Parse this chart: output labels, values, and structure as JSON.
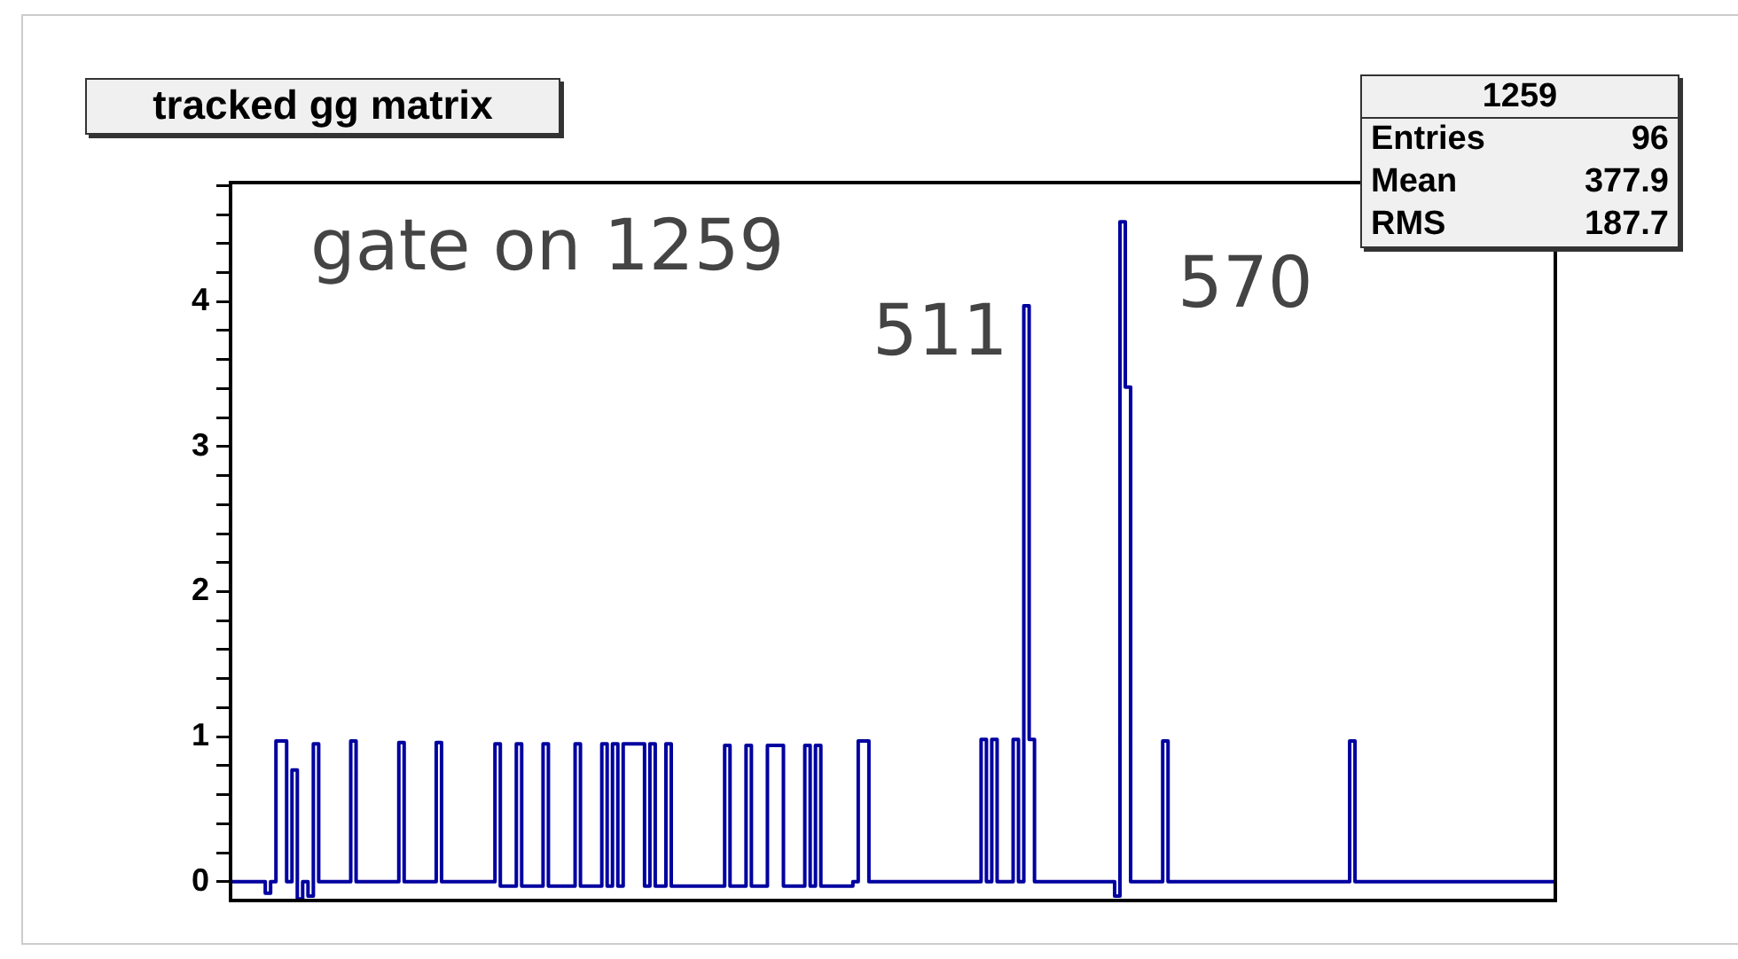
{
  "chart_data": {
    "type": "step",
    "title": "tracked gg matrix",
    "categories": [
      null,
      null,
      null,
      null,
      null,
      null,
      null,
      null,
      null,
      null,
      null,
      null,
      null,
      null,
      null,
      null,
      null,
      null,
      null,
      null,
      null,
      null,
      null,
      null,
      null,
      null,
      null,
      null,
      null,
      null,
      null,
      null,
      null,
      null,
      null,
      null,
      null,
      null,
      null,
      null,
      null,
      null,
      null,
      null,
      null,
      null,
      null,
      null,
      null,
      null,
      null,
      null,
      null,
      null,
      null,
      null,
      null,
      null,
      null,
      null,
      null,
      null,
      null,
      null,
      null,
      null,
      null,
      null,
      null,
      null,
      null,
      null,
      null,
      null,
      null,
      null,
      null,
      null,
      null,
      null,
      null,
      null,
      null,
      null,
      null,
      null,
      null,
      null,
      null,
      null,
      null,
      null,
      null,
      null,
      null,
      null,
      null,
      null,
      null,
      null,
      null,
      null,
      null,
      null,
      null,
      null,
      null,
      null,
      null,
      null,
      null,
      null,
      null,
      null,
      null,
      null,
      null,
      null,
      null,
      null,
      null,
      null,
      null,
      null,
      null,
      null,
      null,
      null,
      null,
      null,
      null,
      null,
      null,
      null,
      null,
      null,
      null,
      null,
      null,
      null,
      null,
      null,
      null,
      null,
      null,
      null,
      null,
      null,
      null,
      null,
      null,
      null,
      null,
      null,
      null,
      null,
      null,
      null,
      null,
      null,
      null,
      null,
      null,
      null,
      null,
      null,
      null,
      null,
      null,
      null,
      null,
      null,
      null,
      null,
      null,
      null,
      null,
      null,
      null,
      null,
      null,
      null,
      null,
      null,
      null,
      null,
      null,
      null,
      null,
      null,
      null,
      null,
      null,
      null,
      null,
      null,
      null,
      null,
      null,
      null,
      null,
      null,
      null,
      null,
      null,
      null,
      null,
      null,
      null,
      null,
      null,
      null,
      null,
      null,
      null,
      null,
      null,
      null,
      null,
      null,
      null,
      null,
      null,
      null,
      null,
      null,
      null,
      null,
      null,
      null,
      null,
      null,
      null,
      null,
      null,
      null,
      null,
      null,
      null,
      null,
      null,
      null,
      null,
      null,
      null,
      null,
      null,
      null,
      null
    ],
    "series": [
      {
        "color": "#0000a0",
        "values": [
          0,
          0,
          0,
          0,
          0,
          0,
          0,
          -0.08,
          0,
          0.97,
          0.97,
          0,
          0.77,
          -0.12,
          0,
          -0.1,
          0.95,
          0,
          0,
          0,
          0,
          0,
          0,
          0.97,
          0,
          0,
          0,
          0,
          0,
          0,
          0,
          0,
          0.96,
          0,
          0,
          0,
          0,
          0,
          0,
          0.96,
          0,
          0,
          0,
          0,
          0,
          0,
          0,
          0,
          0,
          0,
          0.95,
          -0.03,
          -0.03,
          -0.03,
          0.95,
          -0.03,
          -0.03,
          -0.03,
          -0.03,
          0.95,
          -0.03,
          -0.03,
          -0.03,
          -0.03,
          -0.03,
          0.95,
          -0.03,
          -0.03,
          -0.03,
          -0.03,
          0.95,
          -0.03,
          0.95,
          -0.03,
          0.95,
          0.95,
          0.95,
          0.95,
          -0.03,
          0.95,
          -0.03,
          -0.03,
          0.95,
          -0.03,
          -0.03,
          -0.03,
          -0.03,
          -0.03,
          -0.03,
          -0.03,
          -0.03,
          -0.03,
          -0.03,
          0.94,
          -0.03,
          -0.03,
          -0.03,
          0.94,
          -0.03,
          -0.03,
          -0.03,
          0.94,
          0.94,
          0.94,
          -0.03,
          -0.03,
          -0.03,
          -0.03,
          0.94,
          -0.03,
          0.94,
          -0.03,
          -0.03,
          -0.03,
          -0.03,
          -0.03,
          -0.03,
          0,
          0.97,
          0.97,
          0,
          0,
          0,
          0,
          0,
          0,
          0,
          0,
          0,
          0,
          0,
          0,
          0,
          0,
          0,
          0,
          0,
          0,
          0,
          0,
          0,
          0.98,
          0,
          0.98,
          0,
          0,
          0,
          0.98,
          0,
          3.97,
          0.98,
          0,
          0,
          0,
          0,
          0,
          0,
          0,
          0,
          0,
          0,
          0,
          0,
          0,
          0,
          0,
          -0.1,
          4.55,
          3.41,
          0,
          0,
          0,
          0,
          0,
          0,
          0.97,
          0,
          0,
          0,
          0,
          0,
          0,
          0,
          0,
          0,
          0,
          0,
          0,
          0,
          0,
          0,
          0,
          0,
          0,
          0,
          0,
          0,
          0,
          0,
          0,
          0,
          0,
          0,
          0,
          0,
          0,
          0,
          0,
          0,
          0,
          0.97,
          0,
          0,
          0,
          0,
          0,
          0,
          0,
          0,
          0,
          0,
          0,
          0,
          0,
          0,
          0,
          0,
          0,
          0,
          0,
          0,
          0,
          0,
          0,
          0,
          0,
          0,
          0,
          0,
          0,
          0,
          0,
          0,
          0,
          0,
          0,
          0,
          0,
          0
        ]
      }
    ],
    "ylim": [
      -0.13,
      4.82
    ],
    "yticks": [
      0,
      {
        "value": 0.2,
        "label": null
      },
      {
        "value": 0.4,
        "label": null
      },
      {
        "value": 0.6,
        "label": null
      },
      {
        "value": 0.8,
        "label": null
      },
      1,
      {
        "value": 1.2,
        "label": null
      },
      {
        "value": 1.4,
        "label": null
      },
      {
        "value": 1.6,
        "label": null
      },
      {
        "value": 1.8,
        "label": null
      },
      2,
      {
        "value": 2.2,
        "label": null
      },
      {
        "value": 2.4,
        "label": null
      },
      {
        "value": 2.6,
        "label": null
      },
      {
        "value": 2.8,
        "label": null
      },
      3,
      {
        "value": 3.2,
        "label": null
      },
      {
        "value": 3.4,
        "label": null
      },
      {
        "value": 3.6,
        "label": null
      },
      {
        "value": 3.8,
        "label": null
      },
      4,
      {
        "value": 4.2,
        "label": null
      },
      {
        "value": 4.4,
        "label": null
      },
      {
        "value": 4.6,
        "label": null
      },
      {
        "value": 4.8,
        "label": null
      }
    ],
    "tick_labels": "y",
    "grid": false,
    "legend": false,
    "marker": "none",
    "line_style": "solid",
    "annotations": [
      "gate on 1259",
      "511",
      "570",
      "1259",
      "Entries 96",
      "Mean 377.9",
      "RMS 187.7"
    ]
  }
}
